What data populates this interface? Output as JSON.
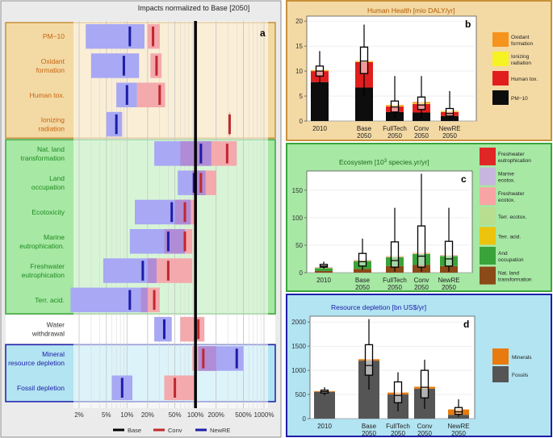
{
  "panel_a": {
    "title": "Impacts normalized to Base [2050]",
    "letter": "a",
    "x_ticks": [
      "2%",
      "5%",
      "10%",
      "20%",
      "50%",
      "100%",
      "200%",
      "500%",
      "1000%"
    ],
    "legend": [
      {
        "label": "Base",
        "color": "#000000"
      },
      {
        "label": "Conv",
        "color": "#c0282d"
      },
      {
        "label": "NewRE",
        "color": "#1c1ca8"
      }
    ],
    "groups": [
      {
        "fill": "#f3d9a4",
        "border": "#c8913a"
      },
      {
        "fill": "#a6e8a4",
        "border": "#3aa53a"
      },
      {
        "fill": "#ffffff",
        "border": "#ffffff"
      },
      {
        "fill": "#b2e4f2",
        "border": "#1c1ca8"
      }
    ],
    "colors": {
      "conv_range": "#f4a9ad",
      "newre_range": "#a8a8f4",
      "overlap": "#b08cd6",
      "conv_line": "#c0282d",
      "newre_line": "#1c1ca8",
      "base_line": "#000000"
    }
  },
  "panel_b": {
    "title": "Human Health [mio DALY/yr]",
    "letter": "b",
    "bg": "#f3d9a4",
    "border": "#c8913a"
  },
  "panel_c": {
    "title_pre": "Ecosystem [10",
    "title_sup": "3",
    "title_post": " species.yr/yr]",
    "letter": "c",
    "bg": "#a6e8a4",
    "border": "#3aa53a"
  },
  "panel_d": {
    "title": "Resource depletion [bn US$/yr]",
    "letter": "d",
    "bg": "#b2e4f2",
    "border": "#1c1ca8"
  },
  "chart_data": [
    {
      "type": "bar",
      "title": "Impacts normalized to Base [2050]",
      "x_scale": "log",
      "x_ticks": [
        0.02,
        0.05,
        0.1,
        0.2,
        0.5,
        1,
        2,
        5,
        10
      ],
      "series_names": [
        "Base",
        "Conv",
        "NewRE"
      ],
      "categories": [
        {
          "label": "PM−10",
          "group": 0,
          "conv": [
            0.2,
            0.3,
            0.24
          ],
          "newre": [
            0.025,
            0.18,
            0.11
          ]
        },
        {
          "label": "Oxidant formation",
          "group": 0,
          "conv": [
            0.22,
            0.32,
            0.27
          ],
          "newre": [
            0.03,
            0.15,
            0.09
          ]
        },
        {
          "label": "Human tox.",
          "group": 0,
          "conv": [
            0.14,
            0.36,
            0.3
          ],
          "newre": [
            0.07,
            0.14,
            0.1
          ]
        },
        {
          "label": "Ionizing radiation",
          "group": 0,
          "conv": [
            3.1,
            3.2,
            3.15
          ],
          "newre": [
            0.05,
            0.085,
            0.07
          ]
        },
        {
          "label": "Nat. land transformation",
          "group": 1,
          "conv": [
            0.6,
            4.0,
            2.9
          ],
          "newre": [
            0.25,
            1.7,
            1.2
          ]
        },
        {
          "label": "Land occupation",
          "group": 1,
          "conv": [
            0.9,
            2.0,
            1.2
          ],
          "newre": [
            0.55,
            1.4,
            0.95
          ]
        },
        {
          "label": "Ecotoxicity",
          "group": 1,
          "conv": [
            0.5,
            1.05,
            0.7
          ],
          "newre": [
            0.13,
            0.85,
            0.45
          ]
        },
        {
          "label": "Marine eutrophication.",
          "group": 1,
          "conv": [
            0.35,
            0.9,
            0.7
          ],
          "newre": [
            0.11,
            0.7,
            0.4
          ]
        },
        {
          "label": "Freshwater eutrophication",
          "group": 1,
          "conv": [
            0.2,
            0.9,
            0.4
          ],
          "newre": [
            0.045,
            0.27,
            0.17
          ]
        },
        {
          "label": "Terr. acid.",
          "group": 1,
          "conv": [
            0.16,
            0.3,
            0.25
          ],
          "newre": [
            0.015,
            0.2,
            0.11
          ]
        },
        {
          "label": "Water withdrawal",
          "group": 2,
          "conv": [
            0.6,
            1.35,
            1.1
          ],
          "newre": [
            0.25,
            0.45,
            0.35
          ]
        },
        {
          "label": "Mineral resource depletion",
          "group": 3,
          "conv": [
            0.9,
            2.0,
            1.3
          ],
          "newre": [
            1.1,
            5.0,
            4.0
          ]
        },
        {
          "label": "Fossil depletion",
          "group": 3,
          "conv": [
            0.35,
            0.95,
            0.5
          ],
          "newre": [
            0.06,
            0.12,
            0.085
          ]
        }
      ]
    },
    {
      "type": "bar",
      "title": "Human Health [mio DALY/yr]",
      "stacked": true,
      "ylim": [
        0,
        21
      ],
      "y_ticks": [
        0,
        5,
        10,
        15,
        20
      ],
      "categories": [
        [
          "2010"
        ],
        [
          "Base",
          "2050"
        ],
        [
          "FullTech",
          "2050"
        ],
        [
          "Conv",
          "2050"
        ],
        [
          "NewRE",
          "2050"
        ]
      ],
      "series": [
        {
          "name": "PM−10",
          "color": "#0d0d0d",
          "values": [
            7.8,
            6.7,
            1.8,
            1.7,
            1.0
          ]
        },
        {
          "name": "Human tox.",
          "color": "#e11d1d",
          "values": [
            2.2,
            5.1,
            1.1,
            1.7,
            0.8
          ]
        },
        {
          "name": "Ionizing radiation",
          "color": "#f7f221",
          "values": [
            0.1,
            0.1,
            0.1,
            0.1,
            0.1
          ]
        },
        {
          "name": "Oxidant formation",
          "color": "#f5931d",
          "values": [
            0.1,
            0.1,
            0.2,
            0.3,
            0.1
          ]
        }
      ],
      "boxes": [
        {
          "wlo": 7.5,
          "q1": 9.0,
          "med": 10.0,
          "q3": 11.0,
          "whi": 14.0
        },
        {
          "wlo": 5.0,
          "q1": 9.5,
          "med": 12.0,
          "q3": 14.8,
          "whi": 19.3
        },
        {
          "wlo": 0.5,
          "q1": 1.8,
          "med": 2.8,
          "q3": 4.0,
          "whi": 9.0
        },
        {
          "wlo": 0.5,
          "q1": 2.3,
          "med": 3.2,
          "q3": 4.8,
          "whi": 9.0
        },
        {
          "wlo": 0.3,
          "q1": 1.0,
          "med": 1.5,
          "q3": 2.5,
          "whi": 6.0
        }
      ]
    },
    {
      "type": "bar",
      "title": "Ecosystem [10^3 species.yr/yr]",
      "stacked": true,
      "ylim": [
        0,
        185
      ],
      "y_ticks": [
        0,
        50,
        100,
        150
      ],
      "categories": [
        [
          "2010"
        ],
        [
          "Base",
          "2050"
        ],
        [
          "FullTech",
          "2050"
        ],
        [
          "Conv",
          "2050"
        ],
        [
          "NewRE",
          "2050"
        ]
      ],
      "series": [
        {
          "name": "Nat. land transformation",
          "color": "#8b4a17",
          "values": [
            3,
            7,
            12,
            14,
            12
          ]
        },
        {
          "name": "And occupation",
          "color": "#3aa33a",
          "values": [
            5,
            14,
            16,
            20,
            18
          ]
        },
        {
          "name": "Terr. acid.",
          "color": "#ecc30d",
          "values": [
            0.5,
            0.5,
            0.5,
            0.5,
            0.5
          ]
        },
        {
          "name": "Terr. ecotox.",
          "color": "#b7de8f",
          "values": [
            0.3,
            0.3,
            0.3,
            0.3,
            0.3
          ]
        },
        {
          "name": "Freshwater ecotox.",
          "color": "#f8a4a4",
          "values": [
            0.3,
            0.3,
            0.3,
            0.3,
            0.3
          ]
        },
        {
          "name": "Marine ecotox.",
          "color": "#c8b5dd",
          "values": [
            0.3,
            0.3,
            0.3,
            0.3,
            0.3
          ]
        },
        {
          "name": "Freshwater eutrophication",
          "color": "#e12626",
          "values": [
            0.3,
            0.3,
            0.3,
            0.3,
            0.3
          ]
        }
      ],
      "boxes": [
        {
          "wlo": 7,
          "q1": 10,
          "med": 12,
          "q3": 15,
          "whi": 20
        },
        {
          "wlo": 5,
          "q1": 12,
          "med": 20,
          "q3": 35,
          "whi": 62
        },
        {
          "wlo": 2,
          "q1": 10,
          "med": 22,
          "q3": 56,
          "whi": 118
        },
        {
          "wlo": 2,
          "q1": 10,
          "med": 30,
          "q3": 85,
          "whi": 180
        },
        {
          "wlo": 2,
          "q1": 12,
          "med": 25,
          "q3": 57,
          "whi": 118
        }
      ]
    },
    {
      "type": "bar",
      "title": "Resource depletion [bn US$/yr]",
      "stacked": true,
      "ylim": [
        0,
        2120
      ],
      "y_ticks": [
        0,
        500,
        1000,
        1500,
        2000
      ],
      "categories": [
        [
          "2010"
        ],
        [
          "Base",
          "2050"
        ],
        [
          "FullTech",
          "2050"
        ],
        [
          "Conv",
          "2050"
        ],
        [
          "NewRE",
          "2050"
        ]
      ],
      "series": [
        {
          "name": "Fossils",
          "color": "#555555",
          "values": [
            555,
            1200,
            500,
            620,
            80
          ]
        },
        {
          "name": "Minerals",
          "color": "#e97a0d",
          "values": [
            15,
            30,
            40,
            40,
            110
          ]
        }
      ],
      "boxes": [
        {
          "wlo": 480,
          "q1": 530,
          "med": 560,
          "q3": 590,
          "whi": 650
        },
        {
          "wlo": 600,
          "q1": 900,
          "med": 1100,
          "q3": 1530,
          "whi": 2060
        },
        {
          "wlo": 150,
          "q1": 330,
          "med": 480,
          "q3": 760,
          "whi": 960
        },
        {
          "wlo": 200,
          "q1": 430,
          "med": 650,
          "q3": 1000,
          "whi": 1220
        },
        {
          "wlo": 40,
          "q1": 90,
          "med": 140,
          "q3": 230,
          "whi": 400
        }
      ]
    }
  ]
}
